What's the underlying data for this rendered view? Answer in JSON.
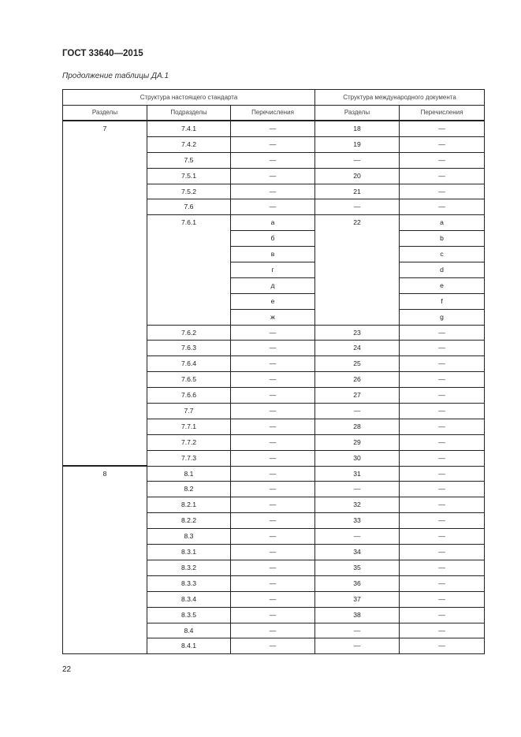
{
  "header": {
    "doc_title": "ГОСТ 33640—2015",
    "caption": "Продолжение таблицы ДА.1"
  },
  "table": {
    "group_headers": [
      "Структура настоящего стандарта",
      "Структура международного документа"
    ],
    "columns": [
      "Разделы",
      "Подразделы",
      "Перечисления",
      "Разделы",
      "Перечисления"
    ],
    "sections": [
      {
        "section": "7",
        "rows": [
          {
            "sub": "7.4.1",
            "enums": [
              "—"
            ],
            "intl": "18",
            "intl_enums": [
              "—"
            ]
          },
          {
            "sub": "7.4.2",
            "enums": [
              "—"
            ],
            "intl": "19",
            "intl_enums": [
              "—"
            ]
          },
          {
            "sub": "7.5",
            "enums": [
              "—"
            ],
            "intl": "—",
            "intl_enums": [
              "—"
            ]
          },
          {
            "sub": "7.5.1",
            "enums": [
              "—"
            ],
            "intl": "20",
            "intl_enums": [
              "—"
            ]
          },
          {
            "sub": "7.5.2",
            "enums": [
              "—"
            ],
            "intl": "21",
            "intl_enums": [
              "—"
            ]
          },
          {
            "sub": "7.6",
            "enums": [
              "—"
            ],
            "intl": "—",
            "intl_enums": [
              "—"
            ]
          },
          {
            "sub": "7.6.1",
            "enums": [
              "а",
              "б",
              "в",
              "г",
              "д",
              "е",
              "ж"
            ],
            "intl": "22",
            "intl_enums": [
              "a",
              "b",
              "c",
              "d",
              "e",
              "f",
              "g"
            ]
          },
          {
            "sub": "7.6.2",
            "enums": [
              "—"
            ],
            "intl": "23",
            "intl_enums": [
              "—"
            ]
          },
          {
            "sub": "7.6.3",
            "enums": [
              "—"
            ],
            "intl": "24",
            "intl_enums": [
              "—"
            ]
          },
          {
            "sub": "7.6.4",
            "enums": [
              "—"
            ],
            "intl": "25",
            "intl_enums": [
              "—"
            ]
          },
          {
            "sub": "7.6.5",
            "enums": [
              "—"
            ],
            "intl": "26",
            "intl_enums": [
              "—"
            ]
          },
          {
            "sub": "7.6.6",
            "enums": [
              "—"
            ],
            "intl": "27",
            "intl_enums": [
              "—"
            ]
          },
          {
            "sub": "7.7",
            "enums": [
              "—"
            ],
            "intl": "—",
            "intl_enums": [
              "—"
            ]
          },
          {
            "sub": "7.7.1",
            "enums": [
              "—"
            ],
            "intl": "28",
            "intl_enums": [
              "—"
            ]
          },
          {
            "sub": "7.7.2",
            "enums": [
              "—"
            ],
            "intl": "29",
            "intl_enums": [
              "—"
            ]
          },
          {
            "sub": "7.7.3",
            "enums": [
              "—"
            ],
            "intl": "30",
            "intl_enums": [
              "—"
            ]
          }
        ]
      },
      {
        "section": "8",
        "rows": [
          {
            "sub": "8.1",
            "enums": [
              "—"
            ],
            "intl": "31",
            "intl_enums": [
              "—"
            ]
          },
          {
            "sub": "8.2",
            "enums": [
              "—"
            ],
            "intl": "—",
            "intl_enums": [
              "—"
            ]
          },
          {
            "sub": "8.2.1",
            "enums": [
              "—"
            ],
            "intl": "32",
            "intl_enums": [
              "—"
            ]
          },
          {
            "sub": "8.2.2",
            "enums": [
              "—"
            ],
            "intl": "33",
            "intl_enums": [
              "—"
            ]
          },
          {
            "sub": "8.3",
            "enums": [
              "—"
            ],
            "intl": "—",
            "intl_enums": [
              "—"
            ]
          },
          {
            "sub": "8.3.1",
            "enums": [
              "—"
            ],
            "intl": "34",
            "intl_enums": [
              "—"
            ]
          },
          {
            "sub": "8.3.2",
            "enums": [
              "—"
            ],
            "intl": "35",
            "intl_enums": [
              "—"
            ]
          },
          {
            "sub": "8.3.3",
            "enums": [
              "—"
            ],
            "intl": "36",
            "intl_enums": [
              "—"
            ]
          },
          {
            "sub": "8.3.4",
            "enums": [
              "—"
            ],
            "intl": "37",
            "intl_enums": [
              "—"
            ]
          },
          {
            "sub": "8.3.5",
            "enums": [
              "—"
            ],
            "intl": "38",
            "intl_enums": [
              "—"
            ]
          },
          {
            "sub": "8.4",
            "enums": [
              "—"
            ],
            "intl": "—",
            "intl_enums": [
              "—"
            ]
          },
          {
            "sub": "8.4.1",
            "enums": [
              "—"
            ],
            "intl": "—",
            "intl_enums": [
              "—"
            ]
          }
        ]
      }
    ]
  },
  "footer": {
    "page_number": "22"
  }
}
